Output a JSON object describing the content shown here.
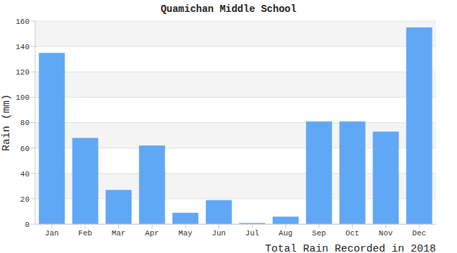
{
  "chart_data": {
    "type": "bar",
    "title": "Quamichan Middle School",
    "x_label": "Total Rain Recorded in 2018",
    "y_label": "Rain (mm)",
    "categories": [
      "Jan",
      "Feb",
      "Mar",
      "Apr",
      "May",
      "Jun",
      "Jul",
      "Aug",
      "Sep",
      "Oct",
      "Nov",
      "Dec"
    ],
    "values": [
      135,
      68,
      27,
      62,
      9,
      19,
      1,
      6,
      81,
      81,
      73,
      155
    ],
    "color": "#60a8f5",
    "ylim": [
      0,
      160
    ],
    "yticks": [
      0,
      20,
      40,
      60,
      80,
      100,
      120,
      140,
      160
    ],
    "grid": true
  }
}
